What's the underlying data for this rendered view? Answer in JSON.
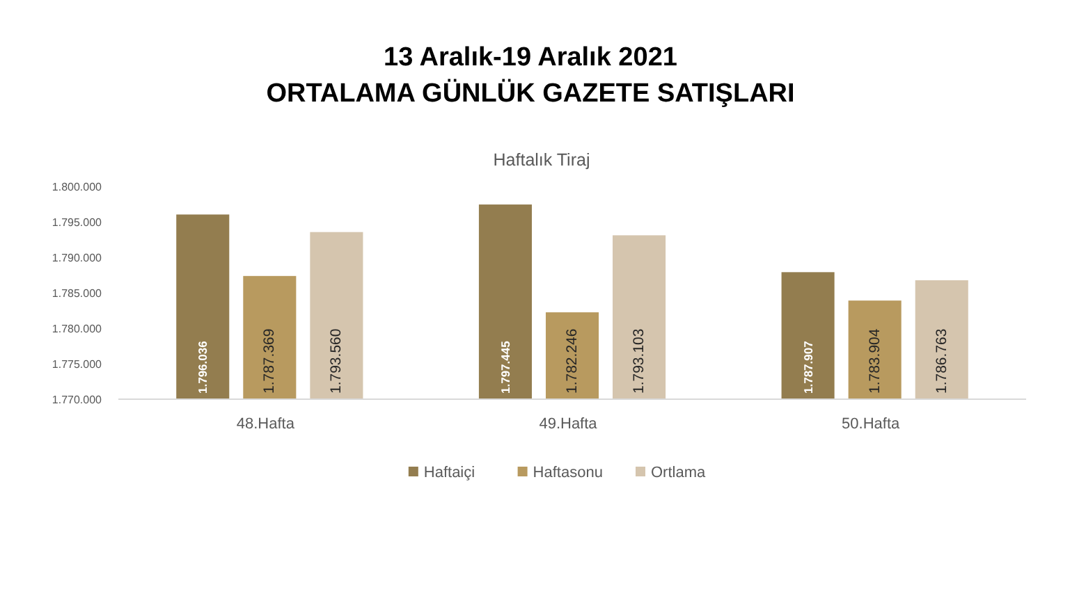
{
  "chart_data": {
    "type": "bar",
    "title": "13 Aralık-19 Aralık 2021\nORTALAMA GÜNLÜK GAZETE SATIŞLARI",
    "subtitle": "Haftalık Tiraj",
    "categories": [
      "48.Hafta",
      "49.Hafta",
      "50.Hafta"
    ],
    "series": [
      {
        "name": "Haftaiçi",
        "color": "#937d4f",
        "values": [
          1796036,
          1797445,
          1787907
        ],
        "value_labels": [
          "1.796.036",
          "1.797.445",
          "1.787.907"
        ]
      },
      {
        "name": "Haftasonu",
        "color": "#b89a5f",
        "values": [
          1787369,
          1782246,
          1783904
        ],
        "value_labels": [
          "1.787.369",
          "1.782.246",
          "1.783.904"
        ]
      },
      {
        "name": "Ortlama",
        "color": "#d5c5ae",
        "values": [
          1793560,
          1793103,
          1786763
        ],
        "value_labels": [
          "1.793.560",
          "1.793.103",
          "1.786.763"
        ]
      }
    ],
    "ylim": [
      1770000,
      1800000
    ],
    "yticks": [
      {
        "value": 1770000,
        "label": "1.770.000"
      },
      {
        "value": 1775000,
        "label": "1.775.000"
      },
      {
        "value": 1780000,
        "label": "1.780.000"
      },
      {
        "value": 1785000,
        "label": "1.785.000"
      },
      {
        "value": 1790000,
        "label": "1.790.000"
      },
      {
        "value": 1795000,
        "label": "1.795.000"
      },
      {
        "value": 1800000,
        "label": "1.800.000"
      }
    ],
    "legend": "bottom"
  }
}
